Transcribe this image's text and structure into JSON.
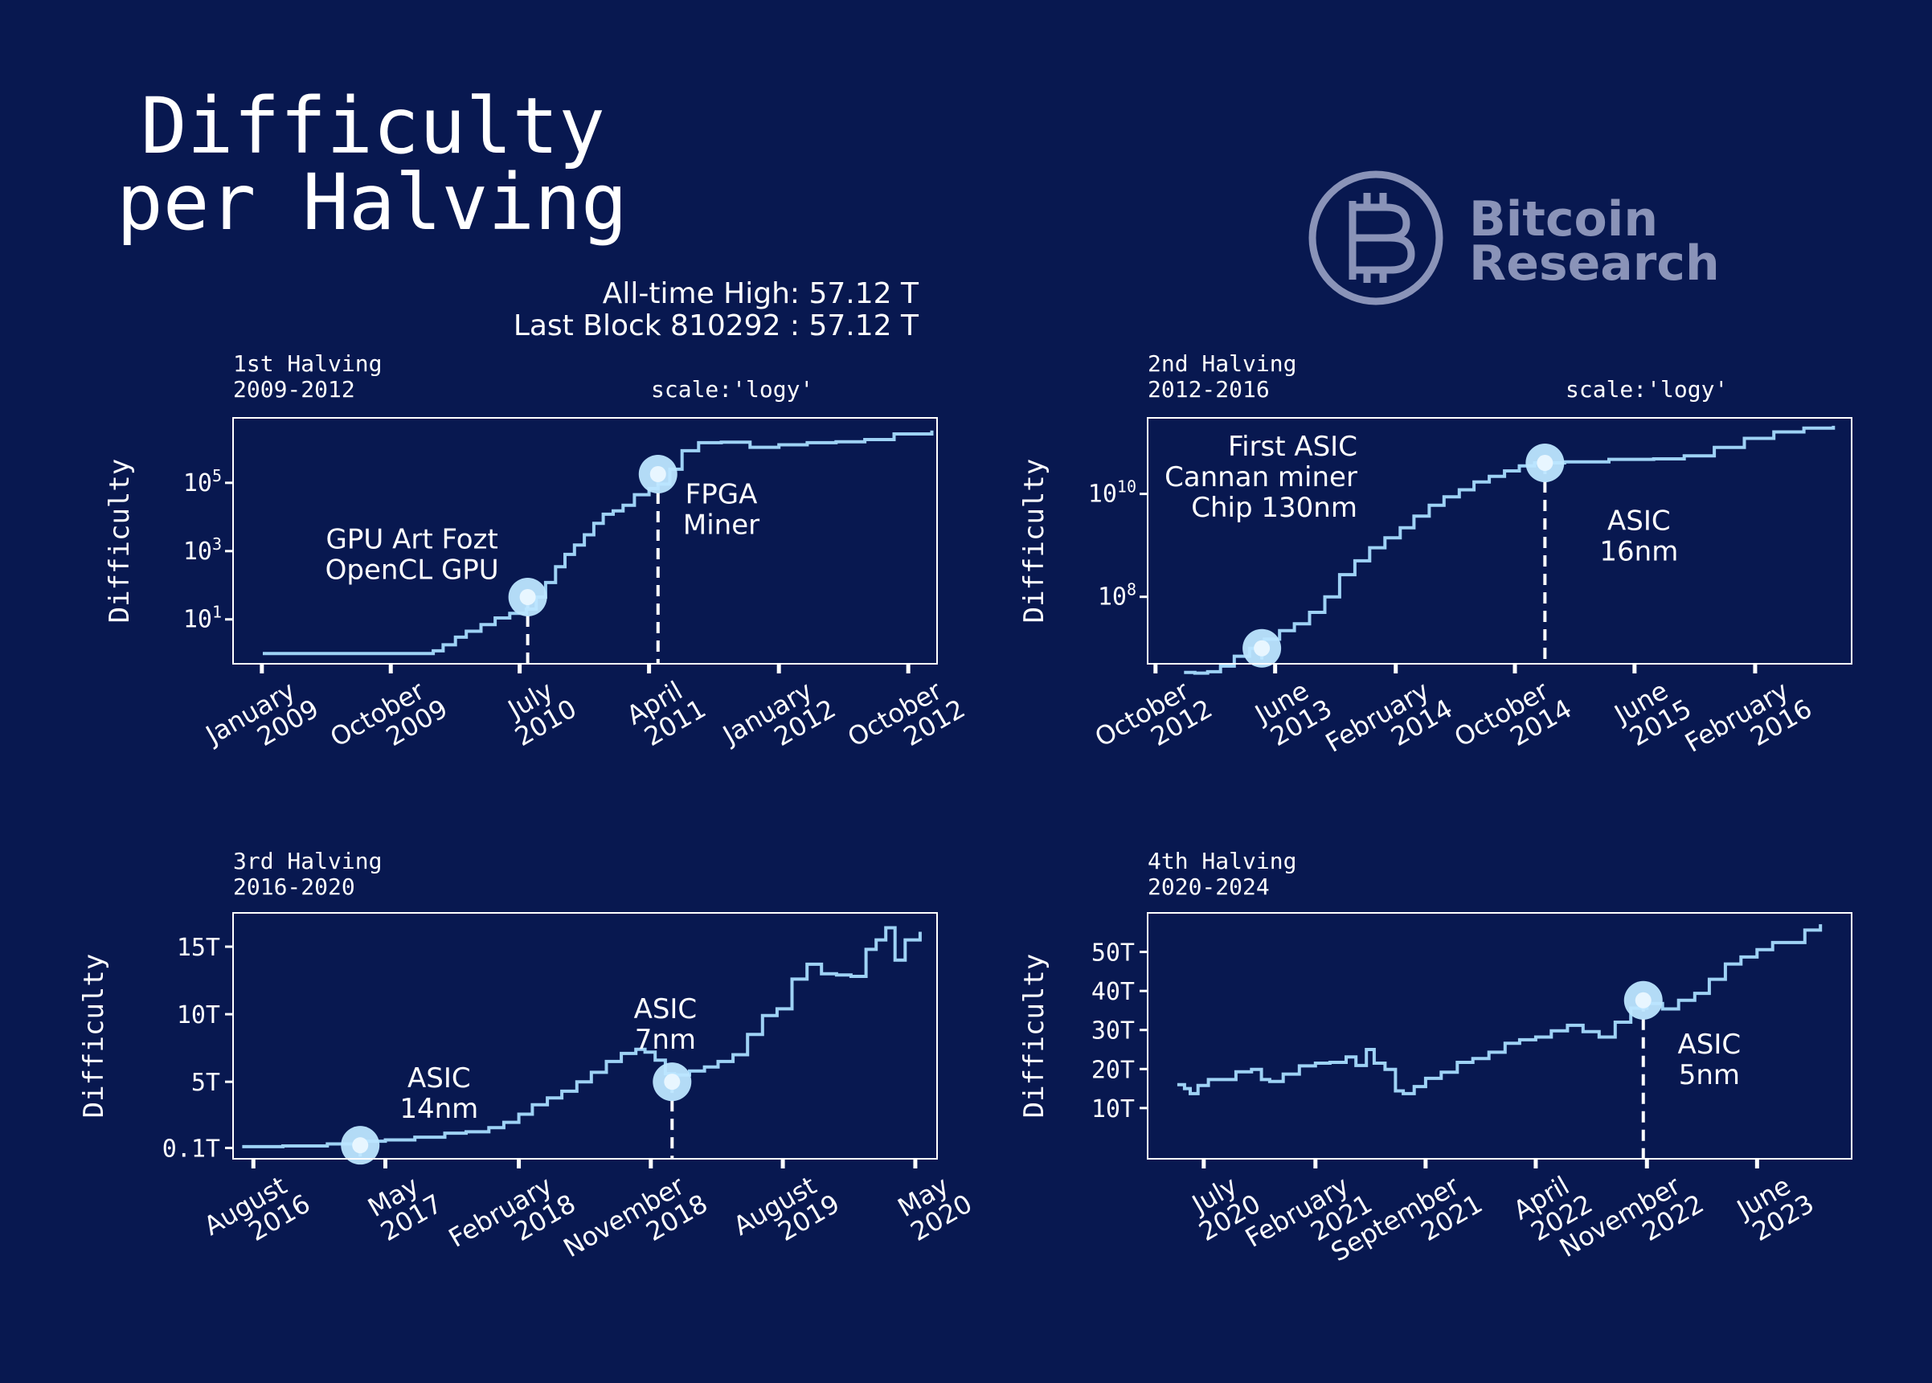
{
  "title_line1": "Difficulty",
  "title_line2": "per Halving",
  "summary": {
    "ath": "All-time High: 57.12 T",
    "last_block": "Last Block 810292 : 57.12 T"
  },
  "logo": {
    "icon": "bitcoin-circle-icon",
    "line1": "Bitcoin",
    "line2": "Research"
  },
  "colors": {
    "background": "#081850",
    "line": "#9ed2f5",
    "marker": "#bde6ff",
    "text": "#ffffff"
  },
  "chart_data": [
    {
      "type": "line",
      "title": "1st Halving",
      "subtitle": "2009-2012",
      "scale_note": "scale:'logy'",
      "ylabel": "Difficulty",
      "yscale": "log",
      "xlim": [
        "2008-11-01",
        "2012-12-01"
      ],
      "ylim": [
        0.5,
        8000000
      ],
      "x_ticks": [
        {
          "date": "2009-01-01",
          "l1": "January",
          "l2": "2009"
        },
        {
          "date": "2009-10-01",
          "l1": "October",
          "l2": "2009"
        },
        {
          "date": "2010-07-01",
          "l1": "July",
          "l2": "2010"
        },
        {
          "date": "2011-04-01",
          "l1": "April",
          "l2": "2011"
        },
        {
          "date": "2012-01-01",
          "l1": "January",
          "l2": "2012"
        },
        {
          "date": "2012-10-01",
          "l1": "October",
          "l2": "2012"
        }
      ],
      "y_ticks": [
        {
          "value": 10,
          "base": "10",
          "exp": "1"
        },
        {
          "value": 1000,
          "base": "10",
          "exp": "3"
        },
        {
          "value": 100000,
          "base": "10",
          "exp": "5"
        }
      ],
      "series": [
        {
          "x": [
            "2009-01-03",
            "2009-12-30",
            "2010-01-20",
            "2010-02-15",
            "2010-03-10",
            "2010-04-10",
            "2010-05-10",
            "2010-06-10",
            "2010-07-15",
            "2010-08-05",
            "2010-08-25",
            "2010-09-15",
            "2010-10-05",
            "2010-10-25",
            "2010-11-15",
            "2010-12-05",
            "2010-12-25",
            "2011-01-15",
            "2011-02-05",
            "2011-03-01",
            "2011-04-01",
            "2011-04-20",
            "2011-05-15",
            "2011-06-10",
            "2011-07-15",
            "2011-09-01",
            "2011-11-01",
            "2012-01-01",
            "2012-03-01",
            "2012-05-01",
            "2012-07-01",
            "2012-09-01",
            "2012-11-20"
          ],
          "y": [
            1,
            1.2,
            1.8,
            3,
            4.5,
            7,
            11,
            15,
            20,
            45,
            120,
            350,
            800,
            1500,
            3000,
            6500,
            12000,
            15000,
            22000,
            45000,
            68000,
            92000,
            250000,
            870000,
            1500000,
            1560000,
            1100000,
            1300000,
            1500000,
            1600000,
            1850000,
            2700000,
            3400000
          ]
        }
      ],
      "markers": [
        {
          "x": "2010-07-18",
          "y": 45,
          "label1": "GPU Art Fozt",
          "label2": "OpenCL GPU",
          "label_x": "2009-11-15",
          "label_y": 1200,
          "anchor": "middle"
        },
        {
          "x": "2011-04-20",
          "y": 180000,
          "label1": "FPGA",
          "label2": "Miner",
          "label_x": "2011-09-01",
          "label_y": 25000,
          "anchor": "middle"
        }
      ]
    },
    {
      "type": "line",
      "title": "2nd Halving",
      "subtitle": "2012-2016",
      "scale_note": "scale:'logy'",
      "ylabel": "Difficulty",
      "yscale": "log",
      "xlim": [
        "2012-09-15",
        "2016-08-15"
      ],
      "ylim": [
        5000000,
        300000000000
      ],
      "x_ticks": [
        {
          "date": "2012-10-01",
          "l1": "October",
          "l2": "2012"
        },
        {
          "date": "2013-06-01",
          "l1": "June",
          "l2": "2013"
        },
        {
          "date": "2014-02-01",
          "l1": "February",
          "l2": "2014"
        },
        {
          "date": "2014-10-01",
          "l1": "October",
          "l2": "2014"
        },
        {
          "date": "2015-06-01",
          "l1": "June",
          "l2": "2015"
        },
        {
          "date": "2016-02-01",
          "l1": "February",
          "l2": "2016"
        }
      ],
      "y_ticks": [
        {
          "value": 100000000,
          "base": "10",
          "exp": "8"
        },
        {
          "value": 10000000000,
          "base": "10",
          "exp": "10"
        }
      ],
      "series": [
        {
          "x": [
            "2012-11-28",
            "2012-12-20",
            "2013-01-15",
            "2013-02-10",
            "2013-03-10",
            "2013-04-10",
            "2013-05-10",
            "2013-06-10",
            "2013-07-10",
            "2013-08-10",
            "2013-09-10",
            "2013-10-10",
            "2013-11-10",
            "2013-12-10",
            "2014-01-10",
            "2014-02-10",
            "2014-03-10",
            "2014-04-10",
            "2014-05-10",
            "2014-06-10",
            "2014-07-10",
            "2014-08-10",
            "2014-09-10",
            "2014-10-10",
            "2014-11-10",
            "2015-01-10",
            "2015-04-10",
            "2015-07-10",
            "2015-09-10",
            "2015-11-10",
            "2016-01-10",
            "2016-03-10",
            "2016-05-10",
            "2016-07-09"
          ],
          "y": [
            3400000,
            3300000,
            3500000,
            4500000,
            7000000,
            10000000,
            15000000,
            22000000,
            30000000,
            50000000,
            100000000,
            270000000,
            500000000,
            900000000,
            1400000000,
            2200000000,
            3700000000,
            6000000000,
            8800000000,
            12000000000,
            17000000000,
            22000000000,
            28000000000,
            35000000000,
            40000000000,
            42000000000,
            47000000000,
            48000000000,
            55000000000,
            80000000000,
            120000000000,
            160000000000,
            190000000000,
            210000000000
          ]
        }
      ],
      "markers": [
        {
          "x": "2013-05-05",
          "y": 10000000,
          "label1": "First ASIC",
          "label2": "Cannan miner",
          "label3": "Chip 130nm",
          "label_x": "2013-11-15",
          "label_y": 55000000000,
          "anchor": "end"
        },
        {
          "x": "2014-12-01",
          "y": 40000000000,
          "label1": "ASIC",
          "label2": "16nm",
          "label_x": "2015-06-10",
          "label_y": 2000000000,
          "anchor": "middle"
        }
      ]
    },
    {
      "type": "line",
      "title": "3rd Halving",
      "subtitle": "2016-2020",
      "ylabel": "Difficulty",
      "yscale": "linear",
      "xlim": [
        "2016-06-20",
        "2020-06-15"
      ],
      "ylim": [
        -0.7,
        17.5
      ],
      "x_ticks": [
        {
          "date": "2016-08-01",
          "l1": "August",
          "l2": "2016"
        },
        {
          "date": "2017-05-01",
          "l1": "May",
          "l2": "2017"
        },
        {
          "date": "2018-02-01",
          "l1": "February",
          "l2": "2018"
        },
        {
          "date": "2018-11-01",
          "l1": "November",
          "l2": "2018"
        },
        {
          "date": "2019-08-01",
          "l1": "August",
          "l2": "2019"
        },
        {
          "date": "2020-05-01",
          "l1": "May",
          "l2": "2020"
        }
      ],
      "y_ticks": [
        {
          "value": 0.1,
          "label": "0.1T"
        },
        {
          "value": 5,
          "label": "5T"
        },
        {
          "value": 10,
          "label": "10T"
        },
        {
          "value": 15,
          "label": "15T"
        }
      ],
      "series": [
        {
          "x": [
            "2016-07-09",
            "2016-10-01",
            "2017-01-01",
            "2017-03-01",
            "2017-05-01",
            "2017-07-01",
            "2017-09-01",
            "2017-10-15",
            "2017-12-01",
            "2018-01-01",
            "2018-02-01",
            "2018-03-01",
            "2018-04-01",
            "2018-05-01",
            "2018-06-01",
            "2018-07-01",
            "2018-08-01",
            "2018-09-01",
            "2018-10-01",
            "2018-10-20",
            "2018-11-10",
            "2018-12-01",
            "2018-12-20",
            "2019-01-20",
            "2019-02-20",
            "2019-03-20",
            "2019-04-20",
            "2019-05-20",
            "2019-06-20",
            "2019-07-20",
            "2019-08-20",
            "2019-09-20",
            "2019-10-20",
            "2019-11-20",
            "2019-12-20",
            "2020-01-20",
            "2020-02-10",
            "2020-03-01",
            "2020-03-20",
            "2020-04-10",
            "2020-05-11"
          ],
          "y": [
            0.2,
            0.25,
            0.4,
            0.6,
            0.7,
            0.9,
            1.2,
            1.3,
            1.6,
            2.0,
            2.6,
            3.3,
            3.8,
            4.3,
            5.0,
            5.7,
            6.5,
            7.1,
            7.4,
            7.2,
            6.6,
            5.6,
            5.5,
            5.8,
            6.1,
            6.5,
            7.0,
            8.5,
            9.9,
            10.4,
            12.6,
            13.7,
            13.0,
            12.9,
            12.8,
            14.8,
            15.5,
            16.4,
            14.0,
            15.5,
            16.1
          ]
        }
      ],
      "markers": [
        {
          "x": "2017-03-10",
          "y": 0.3,
          "label1": "ASIC",
          "label2": "14nm",
          "label_x": "2017-08-20",
          "label_y": 4.6,
          "anchor": "middle"
        },
        {
          "x": "2018-12-15",
          "y": 5.0,
          "label1": "ASIC",
          "label2": "7nm",
          "label_x": "2018-12-01",
          "label_y": 9.7,
          "anchor": "middle"
        }
      ]
    },
    {
      "type": "line",
      "title": "4th Halving",
      "subtitle": "2020-2024",
      "ylabel": "Difficulty",
      "yscale": "linear",
      "xlim": [
        "2020-03-15",
        "2023-11-30"
      ],
      "ylim": [
        -3,
        60
      ],
      "x_ticks": [
        {
          "date": "2020-07-01",
          "l1": "July",
          "l2": "2020"
        },
        {
          "date": "2021-02-01",
          "l1": "February",
          "l2": "2021"
        },
        {
          "date": "2021-09-01",
          "l1": "September",
          "l2": "2021"
        },
        {
          "date": "2022-04-01",
          "l1": "April",
          "l2": "2022"
        },
        {
          "date": "2022-11-01",
          "l1": "November",
          "l2": "2022"
        },
        {
          "date": "2023-06-01",
          "l1": "June",
          "l2": "2023"
        }
      ],
      "y_ticks": [
        {
          "value": 10,
          "label": "10T"
        },
        {
          "value": 20,
          "label": "20T"
        },
        {
          "value": 30,
          "label": "30T"
        },
        {
          "value": 40,
          "label": "40T"
        },
        {
          "value": 50,
          "label": "50T"
        }
      ],
      "series": [
        {
          "x": [
            "2020-05-11",
            "2020-05-25",
            "2020-06-05",
            "2020-06-20",
            "2020-07-10",
            "2020-08-01",
            "2020-09-01",
            "2020-10-01",
            "2020-10-20",
            "2020-11-05",
            "2020-12-01",
            "2021-01-01",
            "2021-02-01",
            "2021-03-01",
            "2021-04-01",
            "2021-04-20",
            "2021-05-10",
            "2021-05-25",
            "2021-06-15",
            "2021-07-05",
            "2021-07-20",
            "2021-08-10",
            "2021-09-01",
            "2021-10-01",
            "2021-11-01",
            "2021-12-01",
            "2022-01-01",
            "2022-02-01",
            "2022-03-01",
            "2022-04-01",
            "2022-05-01",
            "2022-06-01",
            "2022-07-01",
            "2022-08-01",
            "2022-09-01",
            "2022-10-01",
            "2022-11-01",
            "2022-12-01",
            "2023-01-01",
            "2023-02-01",
            "2023-03-01",
            "2023-04-01",
            "2023-05-01",
            "2023-06-01",
            "2023-07-01",
            "2023-08-01",
            "2023-09-01",
            "2023-10-01"
          ],
          "y": [
            16,
            15,
            13.7,
            15.8,
            17.3,
            17.3,
            19.3,
            19.9,
            17.3,
            16.8,
            18.7,
            20.8,
            21.5,
            21.7,
            23.1,
            20.9,
            25.0,
            21.5,
            19.9,
            14.4,
            13.7,
            15.5,
            17.6,
            19.2,
            21.7,
            22.7,
            24.3,
            26.6,
            27.5,
            28.2,
            29.8,
            31.2,
            29.6,
            28.2,
            32.0,
            35.6,
            36.8,
            35.4,
            37.6,
            39.4,
            43.0,
            46.9,
            48.7,
            50.6,
            52.4,
            52.4,
            55.6,
            57.1
          ]
        }
      ],
      "markers": [
        {
          "x": "2022-10-25",
          "y": 37.6,
          "label1": "ASIC",
          "label2": "5nm",
          "label_x": "2023-03-01",
          "label_y": 24,
          "anchor": "middle"
        }
      ]
    }
  ]
}
